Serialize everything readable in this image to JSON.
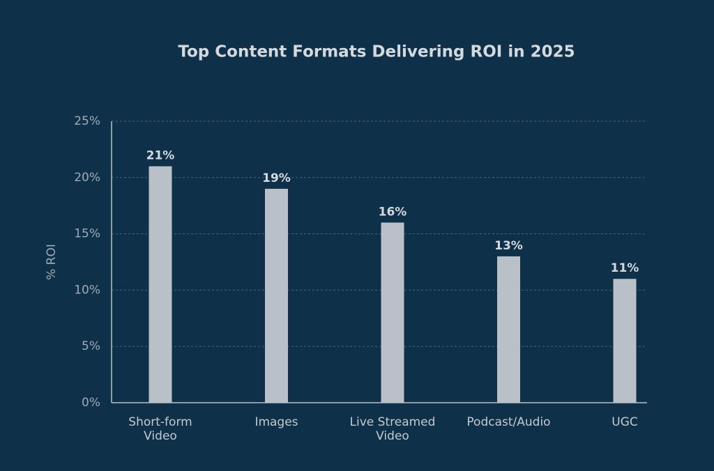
{
  "chart_data": {
    "type": "bar",
    "title": "Top Content Formats Delivering ROI in 2025",
    "ylabel": "% ROI",
    "categories": [
      "Short-form Video",
      "Images",
      "Live Streamed Video",
      "Podcast/Audio",
      "UGC"
    ],
    "values": [
      21,
      19,
      16,
      13,
      11
    ],
    "value_labels": [
      "21%",
      "19%",
      "16%",
      "13%",
      "11%"
    ],
    "color": "#b9c0c7",
    "ylim": [
      0,
      25
    ],
    "yticks": [
      {
        "value": 0,
        "label": "0%"
      },
      {
        "value": 5,
        "label": "5%"
      },
      {
        "value": 10,
        "label": "10%"
      },
      {
        "value": 15,
        "label": "15%"
      },
      {
        "value": 20,
        "label": "20%"
      },
      {
        "value": 25,
        "label": "25%"
      }
    ],
    "grid": true
  }
}
